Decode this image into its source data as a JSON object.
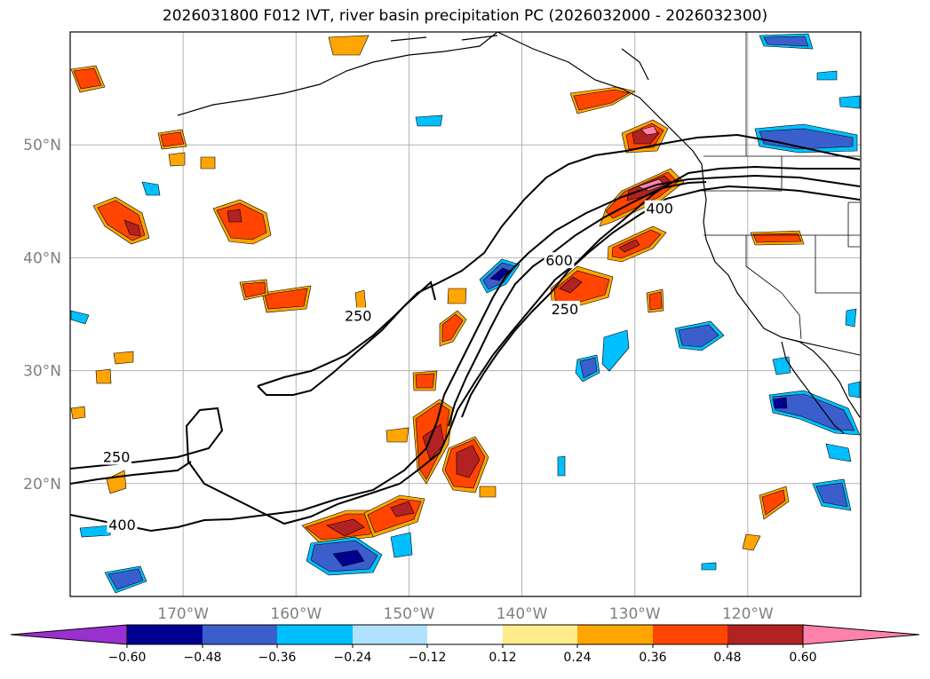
{
  "title": "2026031800 F012 IVT, river basin precipitation PC (2026032000 - 2026032300)",
  "map": {
    "projection": "plate-carree",
    "lon_range": [
      -180,
      -110
    ],
    "lat_range": [
      10,
      60
    ],
    "grid": true,
    "lat_ticks": [
      {
        "lat": 50,
        "label": "50°N"
      },
      {
        "lat": 40,
        "label": "40°N"
      },
      {
        "lat": 30,
        "label": "30°N"
      },
      {
        "lat": 20,
        "label": "20°N"
      }
    ],
    "lon_ticks": [
      {
        "lon": -170,
        "label": "170°W"
      },
      {
        "lon": -160,
        "label": "160°W"
      },
      {
        "lon": -150,
        "label": "150°W"
      },
      {
        "lon": -140,
        "label": "140°W"
      },
      {
        "lon": -130,
        "label": "130°W"
      },
      {
        "lon": -120,
        "label": "120°W"
      }
    ],
    "ivt_contour_labels": [
      {
        "text": "250",
        "lon": -154.5,
        "lat": 34.8
      },
      {
        "text": "600",
        "lon": -136.7,
        "lat": 39.7
      },
      {
        "text": "400",
        "lon": -127.8,
        "lat": 44.3
      },
      {
        "text": "250",
        "lon": -136.2,
        "lat": 35.4
      },
      {
        "text": "250",
        "lon": -175.9,
        "lat": 22.3
      },
      {
        "text": "400",
        "lon": -175.4,
        "lat": 16.3
      }
    ]
  },
  "colorbar": {
    "ticks": [
      "−0.60",
      "−0.48",
      "−0.36",
      "−0.24",
      "−0.12",
      "0.12",
      "0.24",
      "0.36",
      "0.48",
      "0.60"
    ],
    "colors": [
      "#9b30d0",
      "#000090",
      "#3a5fcd",
      "#00bfff",
      "#b0e2ff",
      "#ffffff",
      "#ffec8b",
      "#ffa500",
      "#ff4500",
      "#b22222",
      "#ff82ab"
    ]
  }
}
